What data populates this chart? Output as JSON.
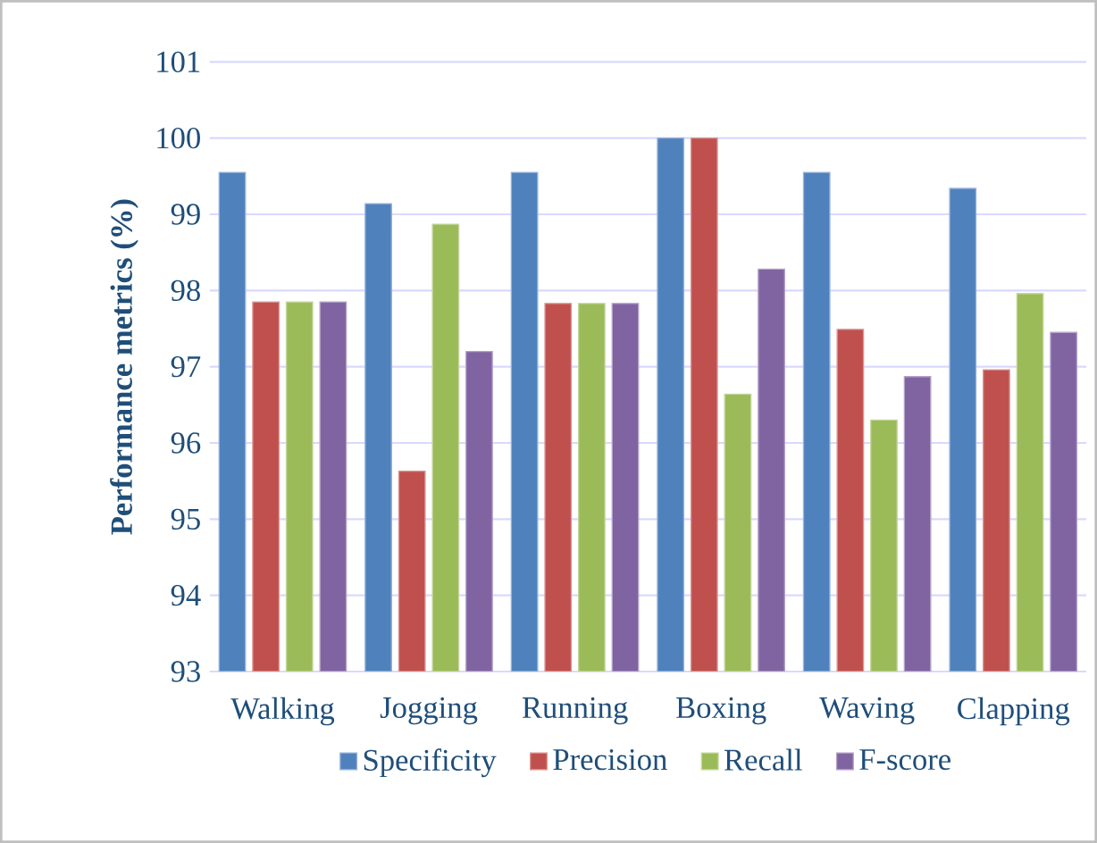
{
  "chart_data": {
    "type": "bar",
    "ylabel": "Performance metrics (%)",
    "categories": [
      "Walking",
      "Jogging",
      "Running",
      "Boxing",
      "Waving",
      "Clapping"
    ],
    "series": [
      {
        "name": "Specificity",
        "color": "#4f81bd",
        "values": [
          99.55,
          99.14,
          99.55,
          100,
          99.55,
          99.34
        ]
      },
      {
        "name": "Precision",
        "color": "#c0504d",
        "values": [
          97.85,
          95.63,
          97.83,
          100,
          97.49,
          96.96
        ]
      },
      {
        "name": "Recall",
        "color": "#9bbb59",
        "values": [
          97.85,
          98.87,
          97.83,
          96.64,
          96.3,
          97.96
        ]
      },
      {
        "name": "F-score",
        "color": "#8064a2",
        "values": [
          97.85,
          97.2,
          97.83,
          98.28,
          96.87,
          97.45
        ]
      }
    ],
    "ylim": [
      93,
      101
    ],
    "yticks": [
      93,
      94,
      95,
      96,
      97,
      98,
      99,
      100,
      101
    ],
    "grid": "y",
    "legend": "bottom"
  }
}
